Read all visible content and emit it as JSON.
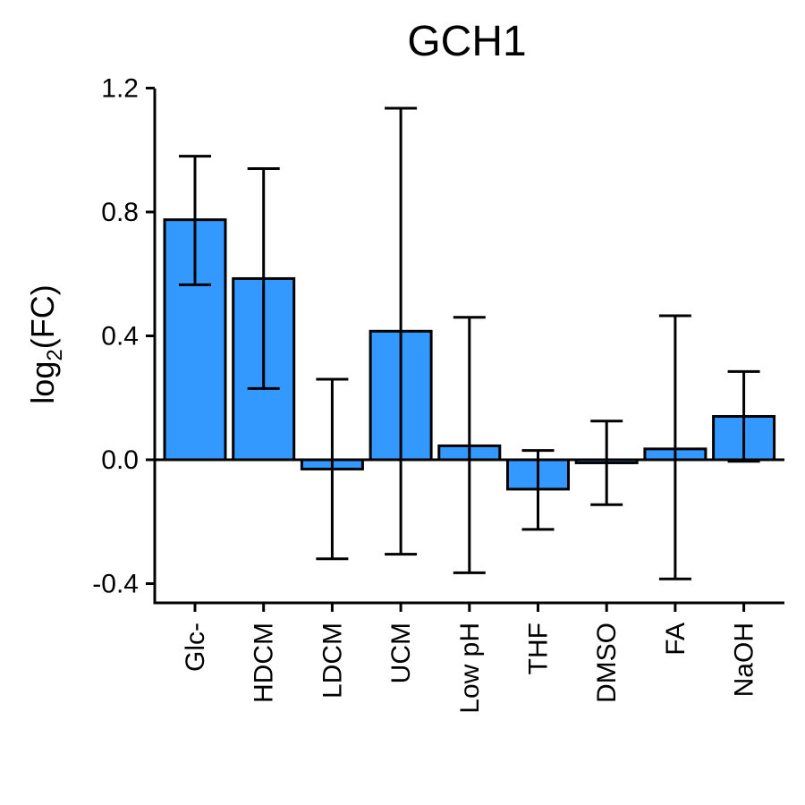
{
  "chart_data": {
    "type": "bar",
    "title": "GCH1",
    "xlabel": "",
    "ylabel_main": "log",
    "ylabel_sub": "2",
    "ylabel_tail": "(FC)",
    "ylim": [
      -0.45,
      1.2
    ],
    "yticks": [
      -0.4,
      0.0,
      0.4,
      0.8,
      1.2
    ],
    "ytick_labels": [
      "-0.4",
      "0.0",
      "0.4",
      "0.8",
      "1.2"
    ],
    "categories": [
      "Glc-",
      "HDCM",
      "LDCM",
      "UCM",
      "Low pH",
      "THF",
      "DMSO",
      "FA",
      "NaOH"
    ],
    "values": [
      0.775,
      0.585,
      -0.03,
      0.415,
      0.045,
      -0.095,
      -0.01,
      0.035,
      0.14
    ],
    "error_low": [
      0.565,
      0.23,
      -0.32,
      -0.305,
      -0.365,
      -0.225,
      -0.145,
      -0.385,
      -0.005
    ],
    "error_high": [
      0.98,
      0.94,
      0.26,
      1.135,
      0.46,
      0.03,
      0.125,
      0.465,
      0.285
    ],
    "bar_color": "#3399ff",
    "edge_color": "#000000",
    "grid": false
  }
}
